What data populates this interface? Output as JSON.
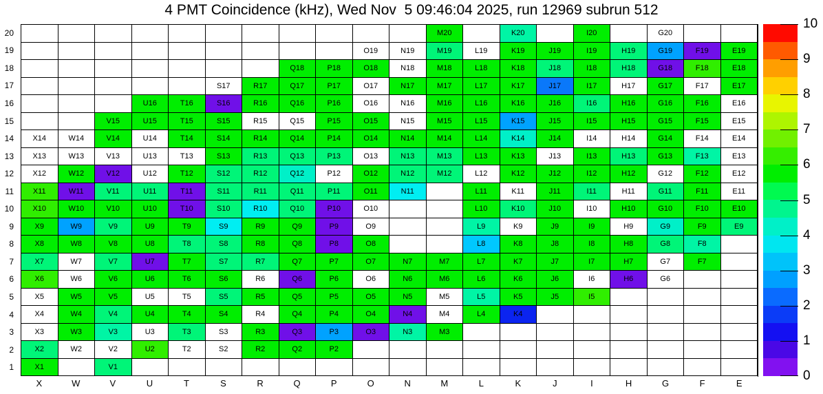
{
  "title": "4 PMT Coincidence (kHz), Wed Nov  5 09:46:04 2025, run 12969 subrun 512",
  "chart_data": {
    "type": "heatmap",
    "title": "4 PMT Coincidence (kHz), Wed Nov  5 09:46:04 2025, run 12969 subrun 512",
    "columns": [
      "X",
      "W",
      "V",
      "U",
      "T",
      "S",
      "R",
      "Q",
      "P",
      "O",
      "N",
      "M",
      "L",
      "K",
      "J",
      "I",
      "H",
      "G",
      "F",
      "E"
    ],
    "rows": [
      "20",
      "19",
      "18",
      "17",
      "16",
      "15",
      "14",
      "13",
      "12",
      "11",
      "10",
      "9",
      "8",
      "7",
      "6",
      "5",
      "4",
      "3",
      "2",
      "1"
    ],
    "legend_position": "right",
    "grid": "on",
    "palette": {
      "v": "#7010e8",
      "b": "#0b24f0",
      "bl": "#0a78fa",
      "lb": "#00a2ff",
      "cb": "#00c8ff",
      "c": "#00eef2",
      "t": "#00f0c8",
      "tg": "#00f5a5",
      "sg": "#00f578",
      "g": "#00ee00",
      "yg": "#30ee00",
      "w": "#ffffff"
    },
    "color_value_estimates_khz": {
      "v": 0.3,
      "b": 1.7,
      "bl": 2.3,
      "lb": 2.8,
      "cb": 3.3,
      "c": 3.7,
      "t": 4.1,
      "tg": 4.4,
      "sg": 4.8,
      "g": 5.6,
      "yg": 6.3,
      "w": 0
    },
    "cells": [
      [
        "",
        "",
        "",
        "",
        "",
        "",
        "",
        "",
        "",
        "",
        "",
        "g:M20",
        "",
        "tg:K20",
        "",
        "g:I20",
        "",
        "w:G20",
        "",
        ""
      ],
      [
        "",
        "",
        "",
        "",
        "",
        "",
        "",
        "",
        "",
        "w:O19",
        "w:N19",
        "sg:M19",
        "w:L19",
        "g:K19",
        "g:J19",
        "g:I19",
        "sg:H19",
        "lb:G19",
        "v:F19",
        "g:E19"
      ],
      [
        "",
        "",
        "",
        "",
        "",
        "",
        "",
        "g:Q18",
        "g:P18",
        "g:O18",
        "w:N18",
        "g:M18",
        "g:L18",
        "g:K18",
        "sg:J18",
        "g:I18",
        "sg:H18",
        "v:G18",
        "yg:F18",
        "g:E18"
      ],
      [
        "",
        "",
        "",
        "",
        "",
        "w:S17",
        "g:R17",
        "g:Q17",
        "g:P17",
        "w:O17",
        "g:N17",
        "g:M17",
        "g:L17",
        "g:K17",
        "bl:J17",
        "g:I17",
        "w:H17",
        "g:G17",
        "w:F17",
        "g:E17"
      ],
      [
        "",
        "",
        "",
        "g:U16",
        "g:T16",
        "v:S16",
        "g:R16",
        "g:Q16",
        "g:P16",
        "w:O16",
        "w:N16",
        "g:M16",
        "g:L16",
        "g:K16",
        "g:J16",
        "sg:I16",
        "g:H16",
        "g:G16",
        "g:F16",
        "w:E16"
      ],
      [
        "",
        "",
        "g:V15",
        "g:U15",
        "g:T15",
        "g:S15",
        "w:R15",
        "w:Q15",
        "g:P15",
        "g:O15",
        "w:N15",
        "g:M15",
        "g:L15",
        "lb:K15",
        "g:J15",
        "g:I15",
        "g:H15",
        "g:G15",
        "g:F15",
        "w:E15"
      ],
      [
        "w:X14",
        "w:W14",
        "g:V14",
        "w:U14",
        "g:T14",
        "g:S14",
        "g:R14",
        "g:Q14",
        "g:P14",
        "g:O14",
        "g:N14",
        "g:M14",
        "g:L14",
        "t:K14",
        "g:J14",
        "w:I14",
        "w:H14",
        "g:G14",
        "w:F14",
        "w:E14"
      ],
      [
        "w:X13",
        "w:W13",
        "w:V13",
        "w:U13",
        "w:T13",
        "g:S13",
        "sg:R13",
        "sg:Q13",
        "sg:P13",
        "w:O13",
        "sg:N13",
        "sg:M13",
        "g:L13",
        "g:K13",
        "w:J13",
        "g:I13",
        "sg:H13",
        "g:G13",
        "tg:F13",
        "w:E13"
      ],
      [
        "w:X12",
        "g:W12",
        "v:V12",
        "w:U12",
        "g:T12",
        "sg:S12",
        "sg:R12",
        "t:Q12",
        "w:P12",
        "g:O12",
        "sg:N12",
        "sg:M12",
        "w:L12",
        "g:K12",
        "g:J12",
        "g:I12",
        "g:H12",
        "w:G12",
        "g:F12",
        "w:E12"
      ],
      [
        "yg:X11",
        "v:W11",
        "sg:V11",
        "sg:U11",
        "v:T11",
        "sg:S11",
        "sg:R11",
        "sg:Q11",
        "sg:P11",
        "g:O11",
        "c:N11",
        "",
        "g:L11",
        "w:K11",
        "g:J11",
        "sg:I11",
        "w:H11",
        "sg:G11",
        "g:F11",
        "w:E11"
      ],
      [
        "yg:X10",
        "g:W10",
        "g:V10",
        "g:U10",
        "v:T10",
        "sg:S10",
        "c:R10",
        "sg:Q10",
        "v:P10",
        "w:O10",
        "",
        "",
        "g:L10",
        "sg:K10",
        "g:J10",
        "w:I10",
        "g:H10",
        "g:G10",
        "g:F10",
        "g:E10"
      ],
      [
        "g:X9",
        "lb:W9",
        "sg:V9",
        "g:U9",
        "g:T9",
        "c:S9",
        "g:R9",
        "g:Q9",
        "v:P9",
        "w:O9",
        "",
        "",
        "tg:L9",
        "w:K9",
        "g:J9",
        "g:I9",
        "w:H9",
        "t:G9",
        "g:F9",
        "sg:E9"
      ],
      [
        "g:X8",
        "g:W8",
        "g:V8",
        "g:U8",
        "sg:T8",
        "sg:S8",
        "g:R8",
        "g:Q8",
        "v:P8",
        "g:O8",
        "",
        "",
        "cb:L8",
        "g:K8",
        "g:J8",
        "g:I8",
        "g:H8",
        "sg:G8",
        "tg:F8",
        ""
      ],
      [
        "sg:X7",
        "w:W7",
        "sg:V7",
        "v:U7",
        "g:T7",
        "sg:S7",
        "sg:R7",
        "g:Q7",
        "g:P7",
        "g:O7",
        "g:N7",
        "g:M7",
        "g:L7",
        "g:K7",
        "g:J7",
        "g:I7",
        "g:H7",
        "w:G7",
        "g:F7",
        ""
      ],
      [
        "yg:X6",
        "w:W6",
        "g:V6",
        "g:U6",
        "g:T6",
        "g:S6",
        "w:R6",
        "v:Q6",
        "g:P6",
        "w:O6",
        "g:N6",
        "g:M6",
        "g:L6",
        "g:K6",
        "g:J6",
        "w:I6",
        "v:H6",
        "w:G6",
        "",
        ""
      ],
      [
        "w:X5",
        "g:W5",
        "g:V5",
        "w:U5",
        "w:T5",
        "sg:S5",
        "g:R5",
        "g:Q5",
        "g:P5",
        "g:O5",
        "g:N5",
        "w:M5",
        "tg:L5",
        "g:K5",
        "g:J5",
        "yg:I5",
        "",
        "",
        "",
        ""
      ],
      [
        "w:X4",
        "g:W4",
        "sg:V4",
        "g:U4",
        "g:T4",
        "g:S4",
        "w:R4",
        "g:Q4",
        "g:P4",
        "g:O4",
        "v:N4",
        "w:M4",
        "g:L4",
        "b:K4",
        "",
        "",
        "",
        "",
        "",
        ""
      ],
      [
        "w:X3",
        "g:W3",
        "tg:V3",
        "w:U3",
        "sg:T3",
        "w:S3",
        "g:R3",
        "v:Q3",
        "lb:P3",
        "v:O3",
        "tg:N3",
        "g:M3",
        "",
        "",
        "",
        "",
        "",
        "",
        "",
        ""
      ],
      [
        "sg:X2",
        "w:W2",
        "w:V2",
        "yg:U2",
        "w:T2",
        "w:S2",
        "g:R2",
        "g:Q2",
        "g:P2",
        "",
        "",
        "",
        "",
        "",
        "",
        "",
        "",
        "",
        "",
        ""
      ],
      [
        "g:X1",
        "",
        "sg:V1",
        "",
        "",
        "",
        "",
        "",
        "",
        "",
        "",
        "",
        "",
        "",
        "",
        "",
        "",
        "",
        "",
        ""
      ]
    ],
    "colorbar": {
      "min": 0,
      "max": 10,
      "tick_labels": [
        "10",
        "9",
        "8",
        "7",
        "6",
        "5",
        "4",
        "3",
        "2",
        "1",
        "0"
      ],
      "bands_bottom_to_top": [
        "#8211f0",
        "#4a08e6",
        "#1410f2",
        "#0b3cf7",
        "#0a6bff",
        "#00a0ff",
        "#00c3fa",
        "#00e6f0",
        "#00f0c8",
        "#00f58e",
        "#00fa50",
        "#00ee00",
        "#35ee00",
        "#71f000",
        "#aef500",
        "#e8f500",
        "#ffd000",
        "#ff9e00",
        "#ff5a00",
        "#ff0a00"
      ]
    }
  }
}
